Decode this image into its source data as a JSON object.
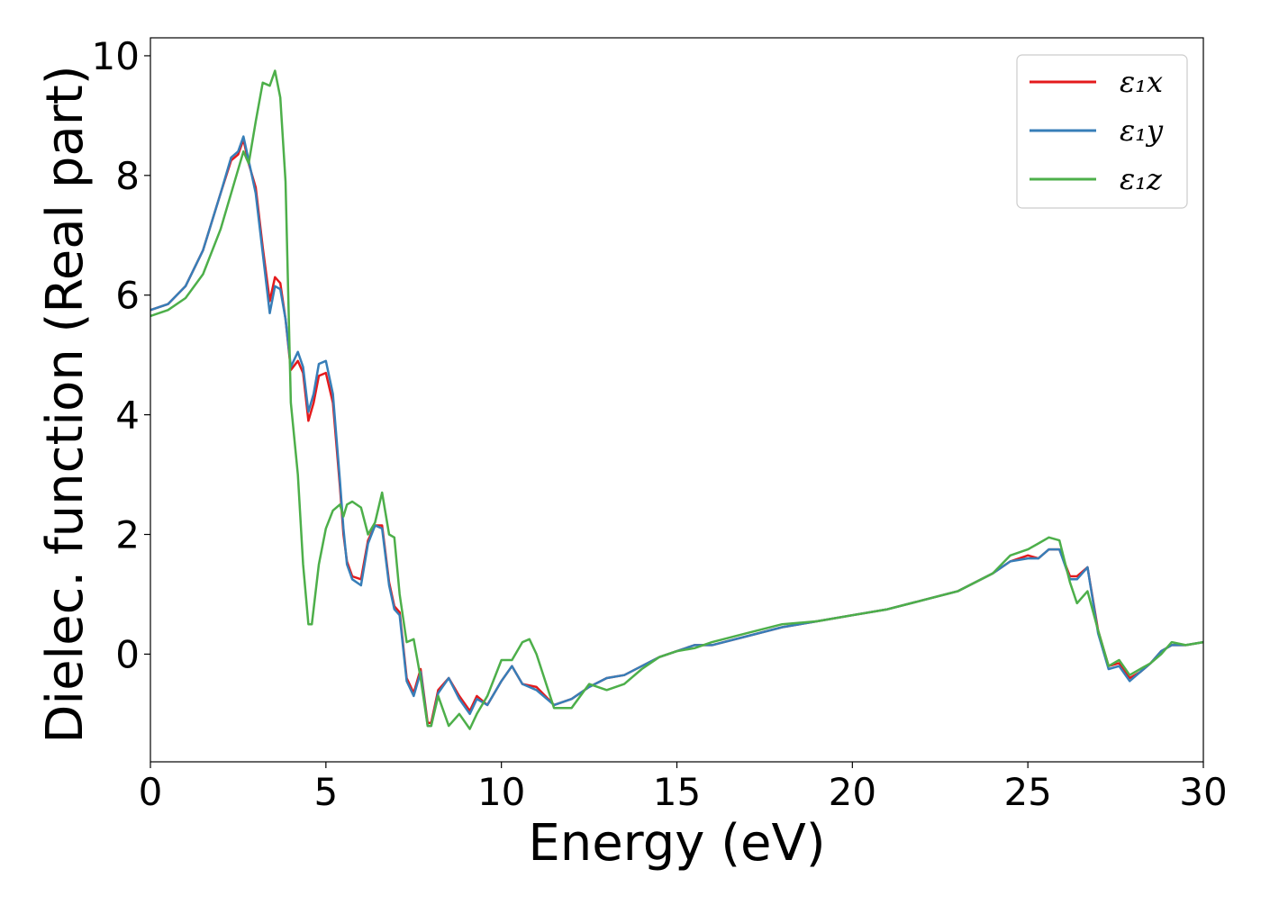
{
  "chart_data": {
    "type": "line",
    "xlabel": "Energy (eV)",
    "ylabel": "Dielec. function (Real part)",
    "xlim": [
      0,
      30
    ],
    "ylim": [
      -1.8,
      10.3
    ],
    "xticks": [
      0,
      5,
      10,
      15,
      20,
      25,
      30
    ],
    "xtick_labels": [
      "0",
      "5",
      "10",
      "15",
      "20",
      "25",
      "30"
    ],
    "yticks": [
      0,
      2,
      4,
      6,
      8,
      10
    ],
    "ytick_labels": [
      "0",
      "2",
      "4",
      "6",
      "8",
      "10"
    ],
    "grid": false,
    "legend_position": "upper right",
    "series": [
      {
        "name": "ε₁x",
        "color": "#e41a1c",
        "x": [
          0,
          0.5,
          1.0,
          1.5,
          2.0,
          2.3,
          2.5,
          2.65,
          2.8,
          3.0,
          3.2,
          3.4,
          3.55,
          3.7,
          3.85,
          4.0,
          4.2,
          4.35,
          4.5,
          4.65,
          4.8,
          5.0,
          5.2,
          5.4,
          5.5,
          5.6,
          5.75,
          6.0,
          6.2,
          6.4,
          6.6,
          6.8,
          6.95,
          7.1,
          7.3,
          7.5,
          7.7,
          7.9,
          8.0,
          8.2,
          8.5,
          8.8,
          9.1,
          9.3,
          9.6,
          10.0,
          10.3,
          10.6,
          11.0,
          11.5,
          12.0,
          12.5,
          13.0,
          13.5,
          14.0,
          14.5,
          15.0,
          15.5,
          16.0,
          17.0,
          18.0,
          19.0,
          20.0,
          21.0,
          22.0,
          23.0,
          24.0,
          24.5,
          25.0,
          25.3,
          25.6,
          25.9,
          26.2,
          26.4,
          26.7,
          27.0,
          27.3,
          27.6,
          27.9,
          28.2,
          28.5,
          28.8,
          29.1,
          29.5,
          30.0
        ],
        "y": [
          5.75,
          5.85,
          6.15,
          6.75,
          7.7,
          8.25,
          8.35,
          8.6,
          8.2,
          7.8,
          6.8,
          5.9,
          6.3,
          6.2,
          5.6,
          4.75,
          4.9,
          4.7,
          3.9,
          4.2,
          4.65,
          4.7,
          4.2,
          2.8,
          2.0,
          1.55,
          1.3,
          1.25,
          1.9,
          2.15,
          2.15,
          1.2,
          0.8,
          0.7,
          -0.4,
          -0.65,
          -0.25,
          -1.15,
          -1.15,
          -0.6,
          -0.4,
          -0.7,
          -0.95,
          -0.7,
          -0.85,
          -0.45,
          -0.2,
          -0.5,
          -0.55,
          -0.85,
          -0.75,
          -0.55,
          -0.4,
          -0.35,
          -0.2,
          -0.05,
          0.05,
          0.15,
          0.15,
          0.3,
          0.45,
          0.55,
          0.65,
          0.75,
          0.9,
          1.05,
          1.35,
          1.55,
          1.65,
          1.6,
          1.75,
          1.75,
          1.3,
          1.3,
          1.45,
          0.4,
          -0.2,
          -0.15,
          -0.4,
          -0.3,
          -0.15,
          0.05,
          0.15,
          0.15,
          0.2
        ]
      },
      {
        "name": "ε₁y",
        "color": "#377eb8",
        "x": [
          0,
          0.5,
          1.0,
          1.5,
          2.0,
          2.3,
          2.5,
          2.65,
          2.8,
          3.0,
          3.2,
          3.4,
          3.55,
          3.7,
          3.85,
          4.0,
          4.2,
          4.35,
          4.5,
          4.65,
          4.8,
          5.0,
          5.2,
          5.4,
          5.5,
          5.6,
          5.75,
          6.0,
          6.2,
          6.4,
          6.6,
          6.8,
          6.95,
          7.1,
          7.3,
          7.5,
          7.7,
          7.9,
          8.0,
          8.2,
          8.5,
          8.8,
          9.1,
          9.3,
          9.6,
          10.0,
          10.3,
          10.6,
          11.0,
          11.5,
          12.0,
          12.5,
          13.0,
          13.5,
          14.0,
          14.5,
          15.0,
          15.5,
          16.0,
          17.0,
          18.0,
          19.0,
          20.0,
          21.0,
          22.0,
          23.0,
          24.0,
          24.5,
          25.0,
          25.3,
          25.6,
          25.9,
          26.2,
          26.4,
          26.7,
          27.0,
          27.3,
          27.6,
          27.9,
          28.2,
          28.5,
          28.8,
          29.1,
          29.5,
          30.0
        ],
        "y": [
          5.75,
          5.85,
          6.15,
          6.75,
          7.7,
          8.3,
          8.4,
          8.65,
          8.25,
          7.7,
          6.7,
          5.7,
          6.15,
          6.1,
          5.6,
          4.8,
          5.05,
          4.8,
          4.05,
          4.35,
          4.85,
          4.9,
          4.35,
          2.9,
          2.1,
          1.5,
          1.25,
          1.15,
          1.85,
          2.15,
          2.1,
          1.15,
          0.75,
          0.65,
          -0.45,
          -0.7,
          -0.3,
          -1.2,
          -1.2,
          -0.65,
          -0.4,
          -0.75,
          -1.0,
          -0.75,
          -0.85,
          -0.45,
          -0.2,
          -0.5,
          -0.6,
          -0.85,
          -0.75,
          -0.55,
          -0.4,
          -0.35,
          -0.2,
          -0.05,
          0.05,
          0.15,
          0.15,
          0.3,
          0.45,
          0.55,
          0.65,
          0.75,
          0.9,
          1.05,
          1.35,
          1.55,
          1.6,
          1.6,
          1.75,
          1.75,
          1.25,
          1.25,
          1.45,
          0.35,
          -0.25,
          -0.2,
          -0.45,
          -0.3,
          -0.15,
          0.05,
          0.15,
          0.15,
          0.2
        ]
      },
      {
        "name": "ε₁z",
        "color": "#4daf4a",
        "x": [
          0,
          0.5,
          1.0,
          1.5,
          2.0,
          2.3,
          2.5,
          2.65,
          2.8,
          3.0,
          3.2,
          3.4,
          3.55,
          3.7,
          3.85,
          4.0,
          4.2,
          4.35,
          4.5,
          4.6,
          4.8,
          5.0,
          5.2,
          5.4,
          5.5,
          5.6,
          5.75,
          6.0,
          6.2,
          6.4,
          6.6,
          6.8,
          6.95,
          7.1,
          7.3,
          7.5,
          7.7,
          7.9,
          8.0,
          8.2,
          8.5,
          8.8,
          9.1,
          9.3,
          9.6,
          10.0,
          10.3,
          10.6,
          10.8,
          11.0,
          11.5,
          12.0,
          12.5,
          13.0,
          13.5,
          14.0,
          14.5,
          15.0,
          15.5,
          16.0,
          17.0,
          18.0,
          19.0,
          20.0,
          21.0,
          22.0,
          23.0,
          24.0,
          24.5,
          25.0,
          25.3,
          25.6,
          25.9,
          26.2,
          26.4,
          26.7,
          27.0,
          27.3,
          27.6,
          27.9,
          28.2,
          28.5,
          28.8,
          29.1,
          29.5,
          30.0
        ],
        "y": [
          5.65,
          5.75,
          5.95,
          6.35,
          7.1,
          7.7,
          8.1,
          8.4,
          8.2,
          8.9,
          9.55,
          9.5,
          9.75,
          9.3,
          7.9,
          4.2,
          3.0,
          1.5,
          0.5,
          0.5,
          1.5,
          2.1,
          2.4,
          2.5,
          2.3,
          2.5,
          2.55,
          2.45,
          2.0,
          2.2,
          2.7,
          2.0,
          1.95,
          1.0,
          0.2,
          0.25,
          -0.4,
          -1.2,
          -1.2,
          -0.7,
          -1.2,
          -1.0,
          -1.25,
          -1.0,
          -0.7,
          -0.1,
          -0.1,
          0.2,
          0.25,
          0.0,
          -0.9,
          -0.9,
          -0.5,
          -0.6,
          -0.5,
          -0.25,
          -0.05,
          0.05,
          0.1,
          0.2,
          0.35,
          0.5,
          0.55,
          0.65,
          0.75,
          0.9,
          1.05,
          1.35,
          1.65,
          1.75,
          1.85,
          1.95,
          1.9,
          1.2,
          0.85,
          1.05,
          0.4,
          -0.2,
          -0.1,
          -0.35,
          -0.25,
          -0.15,
          0.0,
          0.2,
          0.15,
          0.2
        ]
      }
    ]
  }
}
